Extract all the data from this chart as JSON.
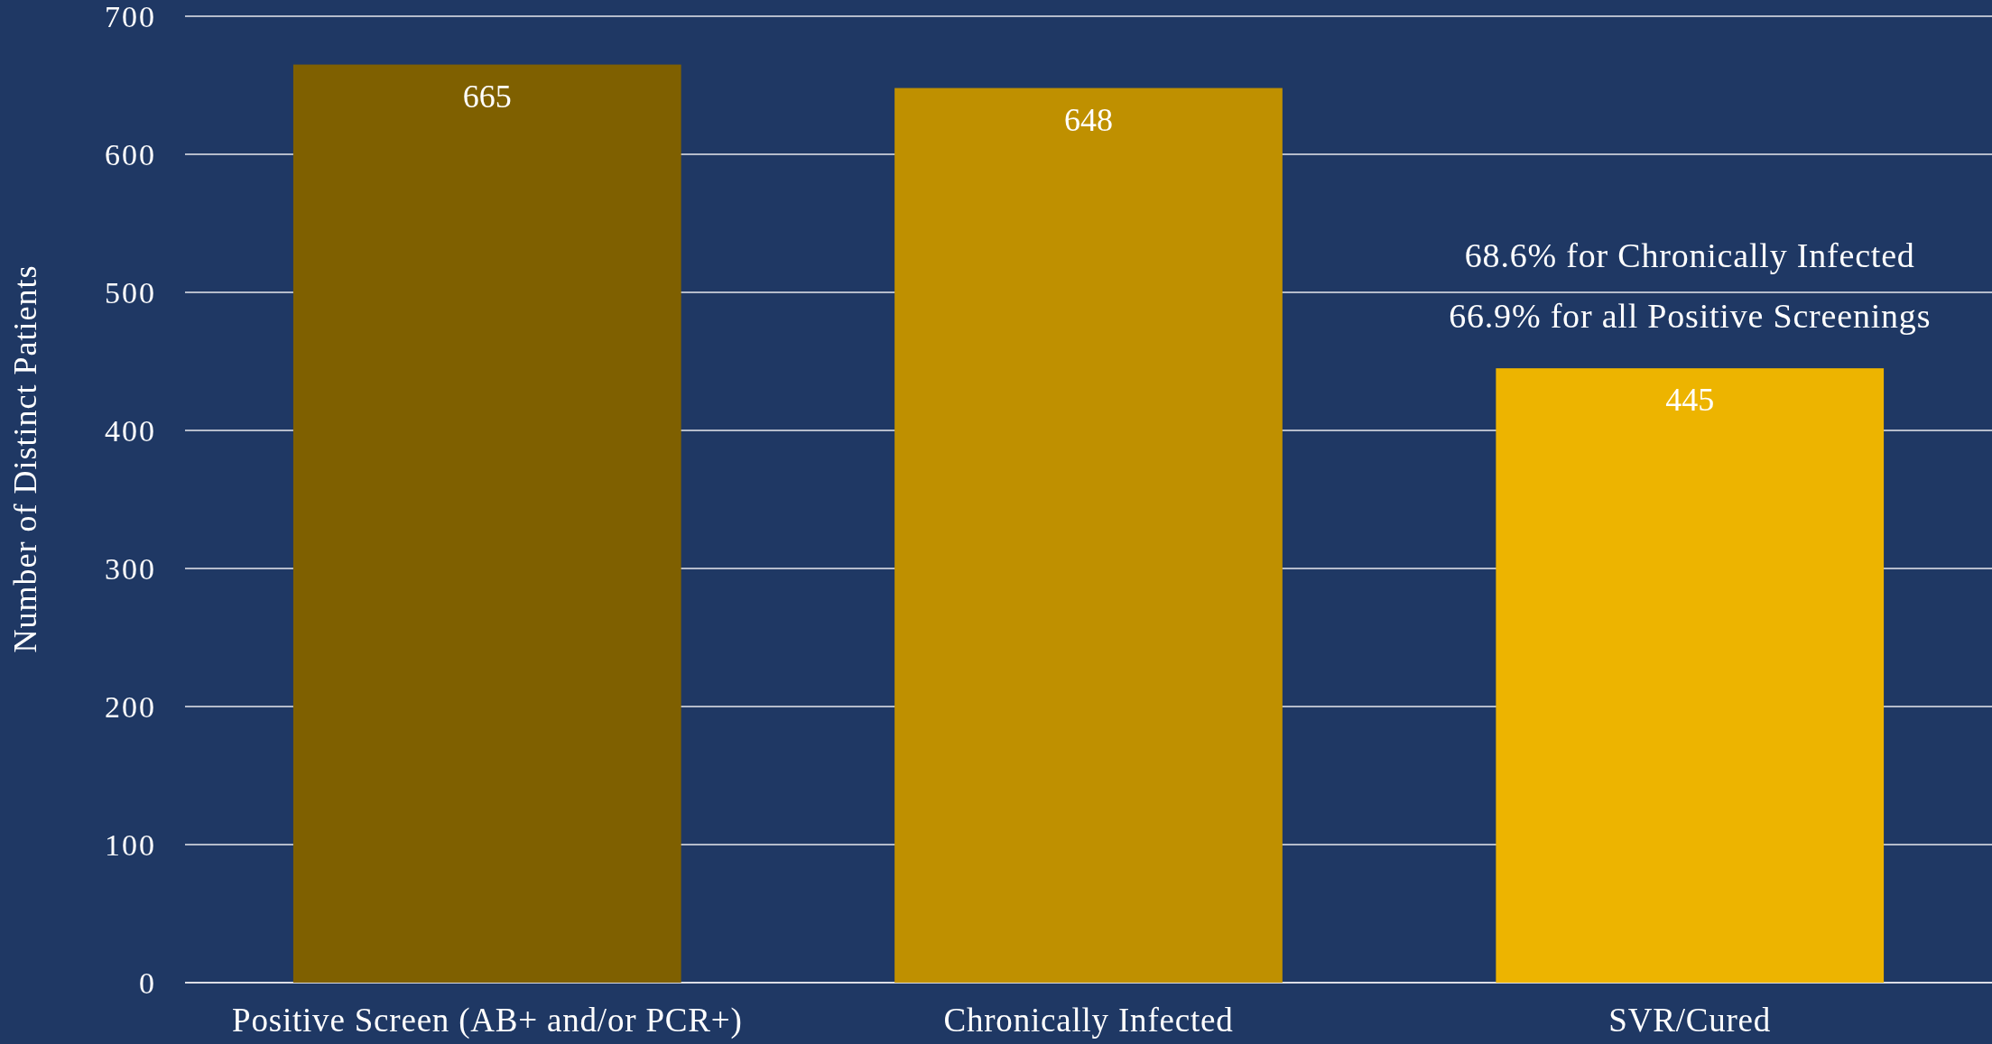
{
  "chart_data": {
    "type": "bar",
    "categories": [
      "Positive Screen (AB+ and/or PCR+)",
      "Chronically Infected",
      "SVR/Cured"
    ],
    "values": [
      665,
      648,
      445
    ],
    "colors": [
      "#7f6000",
      "#bf9000",
      "#edb400"
    ],
    "ylabel": "Number of Distinct Patients",
    "ylim": [
      0,
      700
    ],
    "yticks": [
      0,
      100,
      200,
      300,
      400,
      500,
      600,
      700
    ],
    "grid": "y",
    "data_labels": true,
    "annotations": [
      "68.6% for Chronically Infected",
      "66.9% for all Positive Screenings"
    ]
  }
}
